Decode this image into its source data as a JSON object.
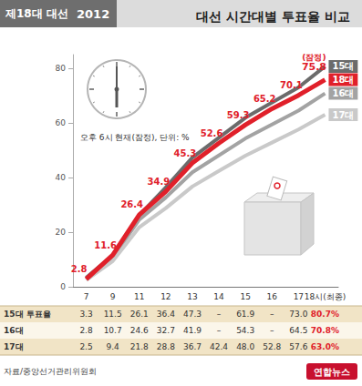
{
  "chart_data": {
    "type": "line",
    "badge": "제18대 대선",
    "badge_year": "2012",
    "title": "대선 시간대별 투표율 비교",
    "subtitle": "오후 6시 현재(잠정), 단위: %",
    "categories": [
      "7",
      "9",
      "11",
      "12",
      "13",
      "14",
      "15",
      "16",
      "17",
      "18시(최종)"
    ],
    "series": [
      {
        "name": "15대",
        "color": "#6b6b6b",
        "values": [
          3.3,
          11.5,
          26.1,
          36.4,
          47.3,
          null,
          61.9,
          null,
          73.0,
          80.7
        ]
      },
      {
        "name": "16대",
        "color": "#a3a3a3",
        "values": [
          2.8,
          10.7,
          24.6,
          32.7,
          41.9,
          null,
          54.3,
          null,
          64.5,
          70.8
        ]
      },
      {
        "name": "17대",
        "color": "#c9c9c9",
        "values": [
          2.5,
          9.4,
          21.8,
          28.8,
          36.7,
          42.4,
          48.0,
          52.8,
          57.6,
          63.0
        ]
      },
      {
        "name": "18대",
        "color": "#e0202a",
        "data_labels": true,
        "values": [
          2.8,
          11.6,
          26.4,
          34.9,
          45.3,
          52.6,
          59.3,
          65.2,
          70.1,
          75.8
        ],
        "value_labels": [
          "2.8",
          "11.6",
          "26.4",
          "34.9",
          "45.3",
          "52.6",
          "59.3",
          "65.2",
          "70.1",
          "75.8"
        ]
      }
    ],
    "annotations": [
      {
        "text": "(잠정)",
        "series": "18대",
        "category": "18시(최종)"
      }
    ],
    "ylim": [
      0,
      85
    ],
    "yticks": [
      0,
      20,
      40,
      60,
      80
    ],
    "grid": false,
    "table": {
      "rows": [
        {
          "label": "15대 투표율",
          "cells": [
            "3.3",
            "11.5",
            "26.1",
            "36.4",
            "47.3",
            "–",
            "61.9",
            "–",
            "73.0",
            "80.7%"
          ]
        },
        {
          "label": "16대",
          "cells": [
            "2.8",
            "10.7",
            "24.6",
            "32.7",
            "41.9",
            "–",
            "54.3",
            "–",
            "64.5",
            "70.8%"
          ]
        },
        {
          "label": "17대",
          "cells": [
            "2.5",
            "9.4",
            "21.8",
            "28.8",
            "36.7",
            "42.4",
            "48.0",
            "52.8",
            "57.6",
            "63.0%"
          ]
        }
      ]
    },
    "source": "자료/중앙선거관리위원회",
    "credit": "연합뉴스"
  }
}
